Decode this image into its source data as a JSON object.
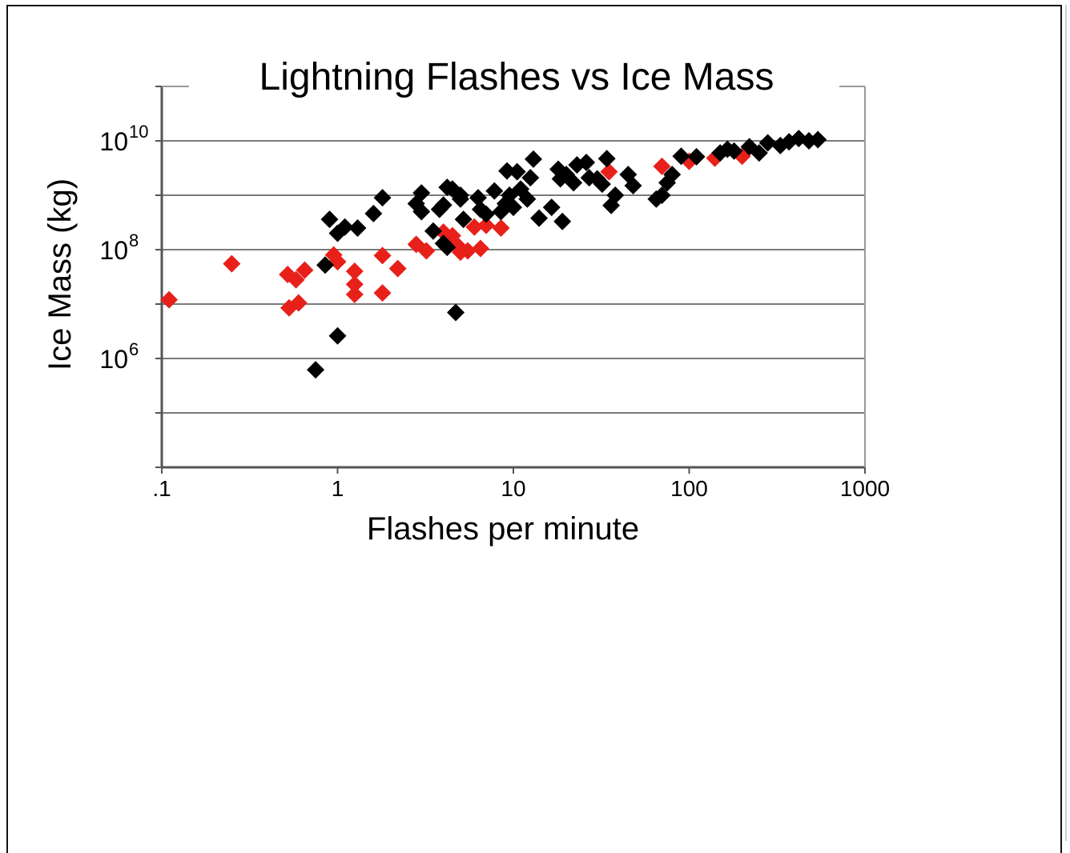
{
  "chart_data": {
    "type": "scatter",
    "title": "Lightning Flashes vs Ice Mass",
    "xlabel": "Flashes per minute",
    "ylabel": "Ice Mass (kg)",
    "xscale": "log",
    "yscale": "log",
    "xlim": [
      0.1,
      1000
    ],
    "ylim": [
      10000,
      100000000000
    ],
    "grid": "horizontal",
    "legend": "none",
    "x_tick_labels": [
      ".1",
      "1",
      "10",
      "100",
      "1000"
    ],
    "y_tick_labels": [
      {
        "base": "10",
        "exp": "10",
        "value": 10000000000
      },
      {
        "base": "10",
        "exp": "8",
        "value": 100000000
      },
      {
        "base": "10",
        "exp": "6",
        "value": 1000000
      }
    ],
    "series": [
      {
        "color": "#e8201a",
        "points": [
          [
            0.11,
            12000000
          ],
          [
            0.25,
            55000000
          ],
          [
            0.52,
            35000000
          ],
          [
            0.58,
            28000000
          ],
          [
            0.65,
            42000000
          ],
          [
            0.53,
            8500000
          ],
          [
            0.6,
            10500000
          ],
          [
            0.95,
            80000000
          ],
          [
            1.0,
            60000000
          ],
          [
            1.25,
            40000000
          ],
          [
            1.25,
            23000000
          ],
          [
            1.25,
            15000000
          ],
          [
            1.8,
            78000000
          ],
          [
            1.8,
            16000000
          ],
          [
            2.2,
            45000000
          ],
          [
            2.8,
            125000000
          ],
          [
            3.2,
            95000000
          ],
          [
            4.0,
            210000000
          ],
          [
            4.5,
            180000000
          ],
          [
            4.8,
            120000000
          ],
          [
            5.0,
            90000000
          ],
          [
            5.5,
            95000000
          ],
          [
            6.0,
            260000000
          ],
          [
            6.5,
            105000000
          ],
          [
            7.0,
            280000000
          ],
          [
            8.5,
            250000000
          ],
          [
            35.0,
            2700000000
          ],
          [
            70.0,
            3400000000
          ],
          [
            100.0,
            4200000000
          ],
          [
            140.0,
            4800000000
          ],
          [
            200.0,
            5200000000
          ]
        ]
      },
      {
        "color": "#000000",
        "points": [
          [
            0.75,
            620000
          ],
          [
            1.0,
            2600000
          ],
          [
            0.9,
            360000000
          ],
          [
            1.0,
            200000000
          ],
          [
            1.1,
            260000000
          ],
          [
            1.3,
            250000000
          ],
          [
            0.85,
            52000000
          ],
          [
            1.6,
            460000000
          ],
          [
            1.8,
            900000000
          ],
          [
            2.8,
            700000000
          ],
          [
            3.0,
            500000000
          ],
          [
            3.0,
            1100000000
          ],
          [
            3.5,
            220000000
          ],
          [
            3.8,
            550000000
          ],
          [
            4.0,
            660000000
          ],
          [
            4.2,
            1400000000
          ],
          [
            4.5,
            1300000000
          ],
          [
            5.0,
            1000000000
          ],
          [
            5.0,
            850000000
          ],
          [
            5.2,
            360000000
          ],
          [
            4.0,
            130000000
          ],
          [
            4.2,
            110000000
          ],
          [
            4.7,
            7000000
          ],
          [
            6.3,
            900000000
          ],
          [
            6.5,
            550000000
          ],
          [
            7.0,
            450000000
          ],
          [
            7.8,
            1200000000
          ],
          [
            8.5,
            500000000
          ],
          [
            9.0,
            700000000
          ],
          [
            9.2,
            2800000000
          ],
          [
            9.5,
            1000000000
          ],
          [
            10.0,
            600000000
          ],
          [
            10.5,
            2700000000
          ],
          [
            11.0,
            1300000000
          ],
          [
            12.0,
            850000000
          ],
          [
            12.5,
            2100000000
          ],
          [
            13.0,
            4600000000
          ],
          [
            14.0,
            380000000
          ],
          [
            16.5,
            600000000
          ],
          [
            18.0,
            3000000000
          ],
          [
            18.5,
            2000000000
          ],
          [
            19.0,
            330000000
          ],
          [
            20.0,
            2400000000
          ],
          [
            22.0,
            1700000000
          ],
          [
            23.0,
            3600000000
          ],
          [
            26.0,
            4000000000
          ],
          [
            27.0,
            2100000000
          ],
          [
            30.0,
            2000000000
          ],
          [
            32.0,
            1600000000
          ],
          [
            34.0,
            4700000000
          ],
          [
            36.0,
            650000000
          ],
          [
            38.0,
            1000000000
          ],
          [
            45.0,
            2400000000
          ],
          [
            48.0,
            1500000000
          ],
          [
            65.0,
            850000000
          ],
          [
            70.0,
            1000000000
          ],
          [
            75.0,
            1700000000
          ],
          [
            80.0,
            2400000000
          ],
          [
            90.0,
            5200000000
          ],
          [
            110.0,
            5100000000
          ],
          [
            150.0,
            6000000000
          ],
          [
            165.0,
            7000000000
          ],
          [
            180.0,
            6500000000
          ],
          [
            220.0,
            7800000000
          ],
          [
            250.0,
            6000000000
          ],
          [
            280.0,
            9200000000
          ],
          [
            330.0,
            8200000000
          ],
          [
            370.0,
            9600000000
          ],
          [
            420.0,
            11000000000
          ],
          [
            480.0,
            10000000000
          ],
          [
            540.0,
            10500000000
          ]
        ]
      }
    ]
  }
}
